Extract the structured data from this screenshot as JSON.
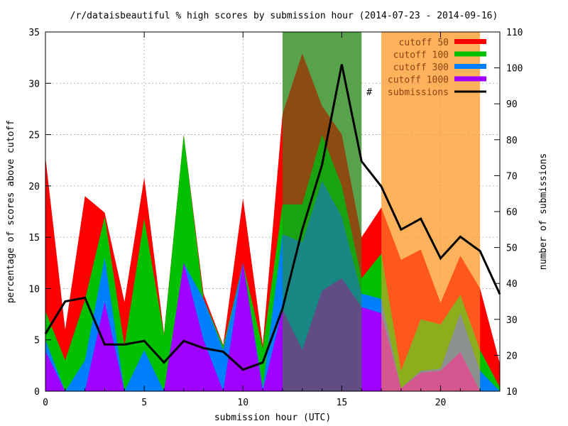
{
  "chart_data": {
    "type": "area",
    "title": "/r/dataisbeautiful % high scores by submission hour (2014-07-23 - 2014-09-16)",
    "xlabel": "submission hour (UTC)",
    "ylabel": "percentage of scores above cutoff",
    "y2label": "number of submissions",
    "xlim": [
      0,
      23
    ],
    "ylim": [
      0,
      35
    ],
    "y2lim": [
      10,
      110
    ],
    "x_ticks": [
      0,
      5,
      10,
      15,
      20
    ],
    "y_ticks": [
      0,
      5,
      10,
      15,
      20,
      25,
      30,
      35
    ],
    "y2_ticks": [
      10,
      20,
      30,
      40,
      50,
      60,
      70,
      80,
      90,
      100,
      110
    ],
    "x_tick_labels": [
      "0",
      "5",
      "10",
      "15",
      "20"
    ],
    "y_tick_labels": [
      "0",
      "5",
      "10",
      "15",
      "20",
      "25",
      "30",
      "35"
    ],
    "y2_tick_labels": [
      "10",
      "20",
      "30",
      "40",
      "50",
      "60",
      "70",
      "80",
      "90",
      "100",
      "110"
    ],
    "grid": true,
    "legend_position": "top-right",
    "x": [
      0,
      1,
      2,
      3,
      4,
      5,
      6,
      7,
      8,
      9,
      10,
      11,
      12,
      13,
      14,
      15,
      16,
      17,
      18,
      19,
      20,
      21,
      22,
      23
    ],
    "series": [
      {
        "name": "cutoff   50",
        "color": "#ff0000",
        "values": [
          22.8,
          6.0,
          19.0,
          17.4,
          8.7,
          20.8,
          5.6,
          25.0,
          9.5,
          4.5,
          18.8,
          4.5,
          27.0,
          32.9,
          27.8,
          25.0,
          15.0,
          17.9,
          12.8,
          13.8,
          8.6,
          13.2,
          10.0,
          2.7
        ]
      },
      {
        "name": "cutoff  100",
        "color": "#00c000",
        "values": [
          7.8,
          3.0,
          8.9,
          17.0,
          4.4,
          16.8,
          5.5,
          25.0,
          9.0,
          4.4,
          12.5,
          4.2,
          18.2,
          18.2,
          25.0,
          20.0,
          11.0,
          13.4,
          2.0,
          7.0,
          6.5,
          9.4,
          4.0,
          0.4
        ]
      },
      {
        "name": "cutoff  300",
        "color": "#0080ff",
        "values": [
          5.0,
          0.0,
          3.0,
          13.0,
          0.0,
          4.0,
          0.0,
          12.5,
          9.0,
          4.0,
          12.5,
          0.4,
          15.3,
          14.5,
          20.5,
          17.0,
          9.5,
          9.0,
          0.3,
          2.0,
          2.2,
          7.6,
          2.0,
          0.0
        ]
      },
      {
        "name": "cutoff 1000",
        "color": "#a000ff",
        "values": [
          3.9,
          0.0,
          0.0,
          8.7,
          0.0,
          0.0,
          0.0,
          12.5,
          5.0,
          0.0,
          12.5,
          0.0,
          8.0,
          4.0,
          9.8,
          11.0,
          8.2,
          7.6,
          0.3,
          1.8,
          2.0,
          3.8,
          0.0,
          0.0
        ]
      }
    ],
    "submissions": {
      "name": "submissions",
      "axis": "right",
      "color": "#000000",
      "values": [
        26,
        35,
        36,
        23,
        23,
        24,
        18,
        24,
        22,
        21,
        16,
        18,
        33,
        55,
        73,
        101,
        74,
        67,
        55,
        58,
        47,
        53,
        49,
        37
      ]
    },
    "bands": [
      {
        "from": 12,
        "to": 16,
        "color": "#2e8b1f",
        "opacity": 0.55
      },
      {
        "from": 17,
        "to": 22,
        "color": "#ff9e33",
        "opacity": 0.55
      }
    ],
    "legend_marker": "#"
  }
}
